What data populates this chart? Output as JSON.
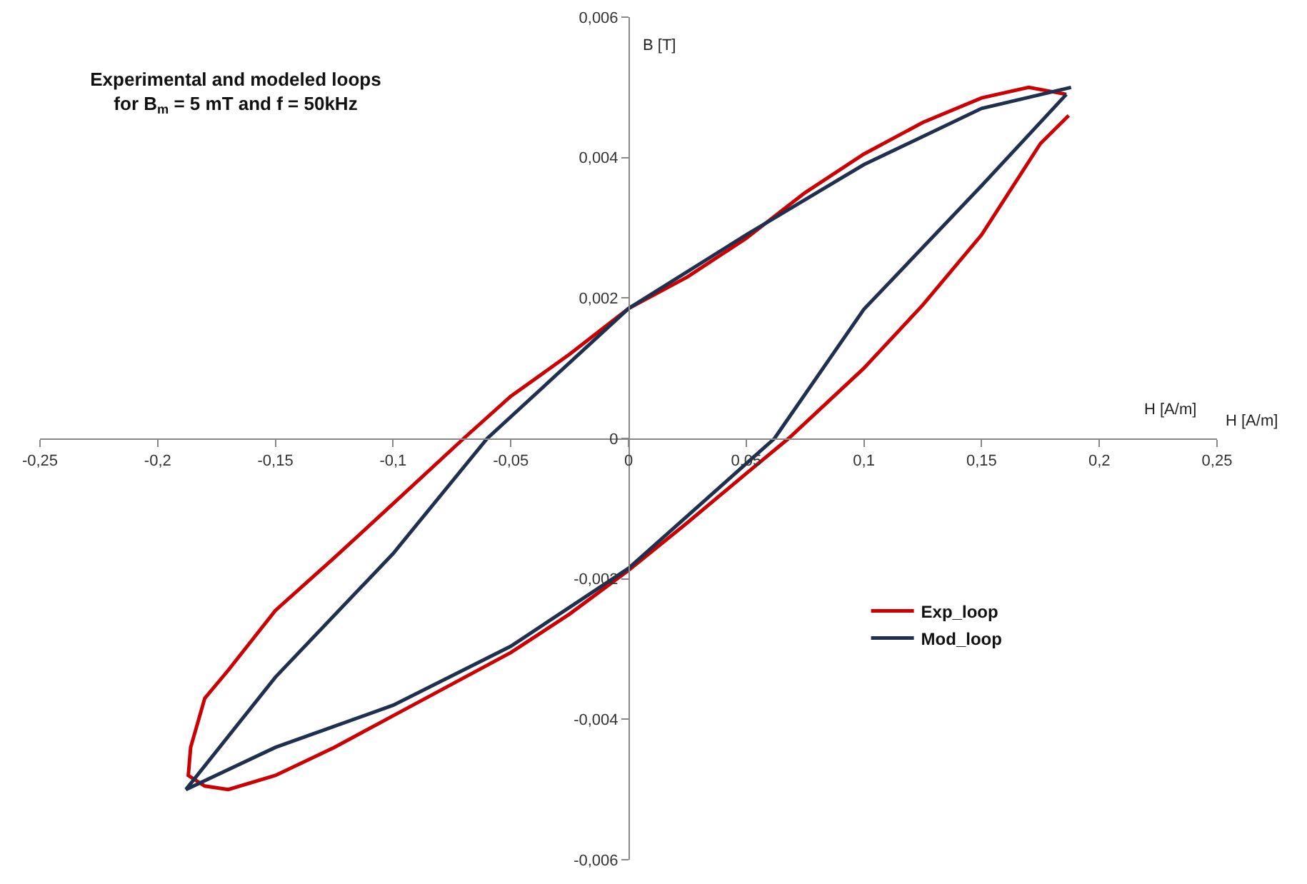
{
  "chart_data": {
    "type": "line",
    "title": "Experimental and modeled loops\nfor B$_{m}$ = 5 mT and f = 50kHz",
    "xlabel": "H [A/m]",
    "ylabel": "B [T]",
    "annotations": [
      "H [A/m]"
    ],
    "xlim": [
      -0.25,
      0.25
    ],
    "ylim": [
      -0.006,
      0.006
    ],
    "xticks": [
      {
        "value": -0.25,
        "label": "-0,25"
      },
      {
        "value": -0.2,
        "label": "-0,2"
      },
      {
        "value": -0.15,
        "label": "-0,15"
      },
      {
        "value": -0.1,
        "label": "-0,1"
      },
      {
        "value": -0.05,
        "label": "-0,05"
      },
      0,
      {
        "value": 0.05,
        "label": "0,05"
      },
      {
        "value": 0.1,
        "label": "0,1"
      },
      {
        "value": 0.15,
        "label": "0,15"
      },
      {
        "value": 0.2,
        "label": "0,2"
      },
      {
        "value": 0.25,
        "label": "0,25"
      }
    ],
    "yticks": [
      {
        "value": -0.006,
        "label": "-0,006"
      },
      {
        "value": -0.004,
        "label": "-0,004"
      },
      {
        "value": -0.002,
        "label": "-0,002"
      },
      0,
      {
        "value": 0.002,
        "label": "0,002"
      },
      {
        "value": 0.004,
        "label": "0,004"
      },
      {
        "value": 0.006,
        "label": "0,006"
      }
    ],
    "grid": false,
    "legend": "right",
    "marker": "none",
    "line_style": "solid",
    "series": [
      {
        "name": "Exp_loop",
        "color": "#cc0000",
        "x": [
          0.186,
          0.17,
          0.15,
          0.125,
          0.1,
          0.075,
          0.05,
          0.025,
          0,
          -0.025,
          -0.05,
          -0.07,
          -0.1,
          -0.125,
          -0.15,
          -0.17,
          -0.18,
          -0.186,
          -0.187,
          -0.18,
          -0.17,
          -0.15,
          -0.125,
          -0.1,
          -0.075,
          -0.05,
          -0.025,
          0,
          0.025,
          0.05,
          0.068,
          0.1,
          0.125,
          0.15,
          0.175,
          0.187
        ],
        "values": [
          0.0049,
          0.005,
          0.00485,
          0.0045,
          0.00405,
          0.0035,
          0.00285,
          0.0023,
          0.00185,
          0.0012,
          0.0006,
          0,
          -0.00093,
          -0.0017,
          -0.00245,
          -0.0033,
          -0.0037,
          -0.0044,
          -0.0048,
          -0.00495,
          -0.005,
          -0.0048,
          -0.0044,
          -0.00395,
          -0.0035,
          -0.00305,
          -0.0025,
          -0.00188,
          -0.0012,
          -0.0005,
          0,
          0.001,
          0.0019,
          0.0029,
          0.0042,
          0.0046
        ]
      },
      {
        "name": "Mod_loop",
        "color": "#1f2f4f",
        "x": [
          0.188,
          0.15,
          0.1,
          0.05,
          0,
          -0.06,
          -0.1,
          -0.15,
          -0.188,
          -0.15,
          -0.1,
          -0.05,
          0,
          0.062,
          0.1,
          0.15,
          0.186
        ],
        "values": [
          0.005,
          0.0047,
          0.0039,
          0.0029,
          0.00185,
          0,
          -0.00164,
          -0.0034,
          -0.005,
          -0.0044,
          -0.0038,
          -0.00296,
          -0.00185,
          0,
          0.00184,
          0.0036,
          0.0049
        ]
      }
    ]
  }
}
